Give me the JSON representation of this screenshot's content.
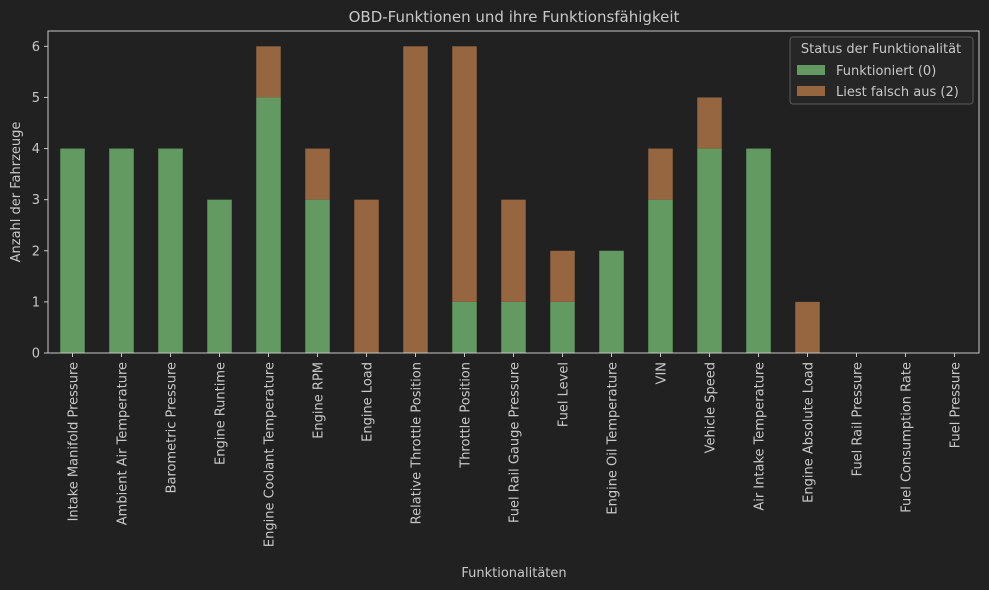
{
  "chart_data": {
    "type": "bar",
    "stacked": true,
    "title": "OBD-Funktionen und ihre Funktionsfähigkeit",
    "xlabel": "Funktionalitäten",
    "ylabel": "Anzahl der Fahrzeuge",
    "ylim": [
      0,
      6.3
    ],
    "yticks": [
      0,
      1,
      2,
      3,
      4,
      5,
      6
    ],
    "grid": false,
    "legend": {
      "title": "Status der Funktionalität",
      "placement": "top-right"
    },
    "categories": [
      "Intake Manifold Pressure",
      "Ambient Air Temperature",
      "Barometric Pressure",
      "Engine Runtime",
      "Engine Coolant Temperature",
      "Engine RPM",
      "Engine Load",
      "Relative Throttle Position",
      "Throttle Position",
      "Fuel Rail Gauge Pressure",
      "Fuel Level",
      "Engine Oil Temperature",
      "VIN",
      "Vehicle Speed",
      "Air Intake Temperature",
      "Engine Absolute Load",
      "Fuel Rail Pressure",
      "Fuel Consumption Rate",
      "Fuel Pressure"
    ],
    "series": [
      {
        "name": "Funktioniert (0)",
        "color": "#629a62",
        "values": [
          4,
          4,
          4,
          3,
          5,
          3,
          0,
          0,
          1,
          1,
          1,
          2,
          3,
          4,
          4,
          0,
          0,
          0,
          0
        ]
      },
      {
        "name": "Liest falsch aus (2)",
        "color": "#966640",
        "values": [
          0,
          0,
          0,
          0,
          1,
          1,
          3,
          6,
          5,
          2,
          1,
          0,
          1,
          1,
          0,
          1,
          0,
          0,
          0
        ]
      }
    ]
  },
  "colors": {
    "background": "#212121",
    "text": "#c8c8c8"
  }
}
